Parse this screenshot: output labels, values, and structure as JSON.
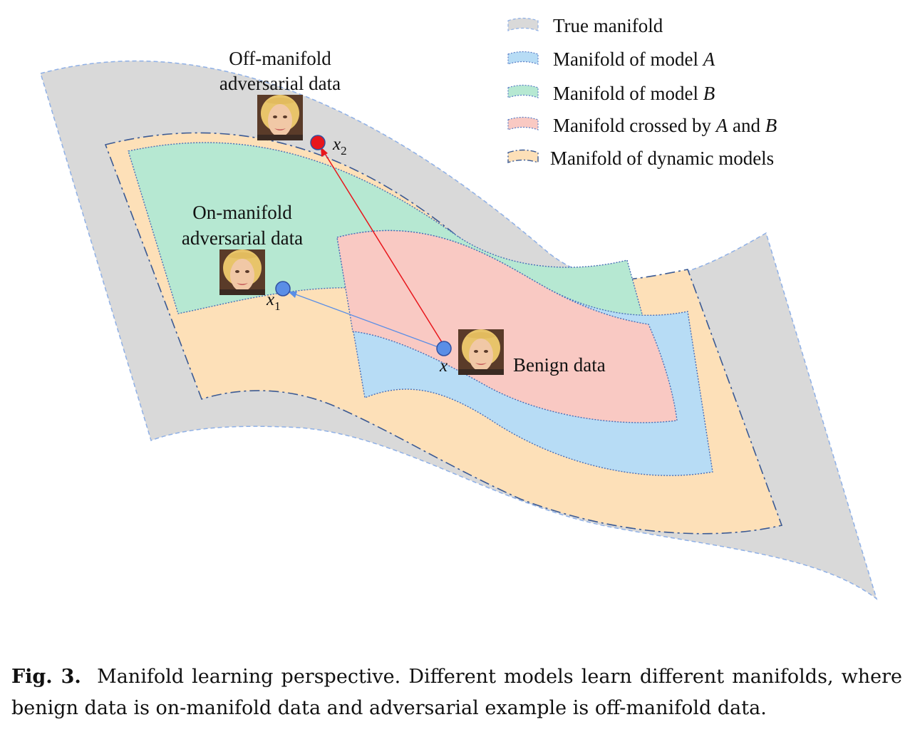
{
  "legend": {
    "items": [
      {
        "id": "true",
        "text": "True manifold",
        "fill": "#d9d9d9",
        "stroke": "#8fb0e6"
      },
      {
        "id": "a",
        "text": "Manifold of model ",
        "var": "A",
        "fill": "#b7dcf5",
        "stroke": "#5b7fc7"
      },
      {
        "id": "b",
        "text": "Manifold of model ",
        "var": "B",
        "fill": "#b6e8d2",
        "stroke": "#5b7fc7"
      },
      {
        "id": "ab",
        "text": "Manifold crossed by ",
        "var": "A",
        "mid": " and ",
        "var2": "B",
        "fill": "#f9c9c3",
        "stroke": "#5b7fc7"
      },
      {
        "id": "dyn",
        "text": "Manifold of dynamic models",
        "fill": "#fde0b8",
        "stroke": "#3b5a94"
      }
    ]
  },
  "labels": {
    "off_manifold_line1": "Off-manifold",
    "off_manifold_line2": "adversarial data",
    "on_manifold_line1": "On-manifold",
    "on_manifold_line2": "adversarial data",
    "benign": "Benign data",
    "x": "x",
    "x1": "x",
    "x1_sub": "1",
    "x2": "x",
    "x2_sub": "2"
  },
  "colors": {
    "true_fill": "#d9d9d9",
    "dynamic_fill": "#fde0b8",
    "model_a_fill": "#b7dcf5",
    "model_b_fill": "#b6e8d2",
    "crossed_fill": "#f9c9c3",
    "point_blue": "#5a8ee6",
    "point_red": "#e8161c",
    "arrow_red": "#e8161c",
    "arrow_blue": "#5a8ee6"
  },
  "icons": {
    "face": "face-thumbnail-icon"
  },
  "caption": {
    "label": "Fig. 3.",
    "text": "Manifold learning perspective. Different models learn different manifolds, where benign data is on-manifold data and adversarial example is off-manifold data."
  }
}
